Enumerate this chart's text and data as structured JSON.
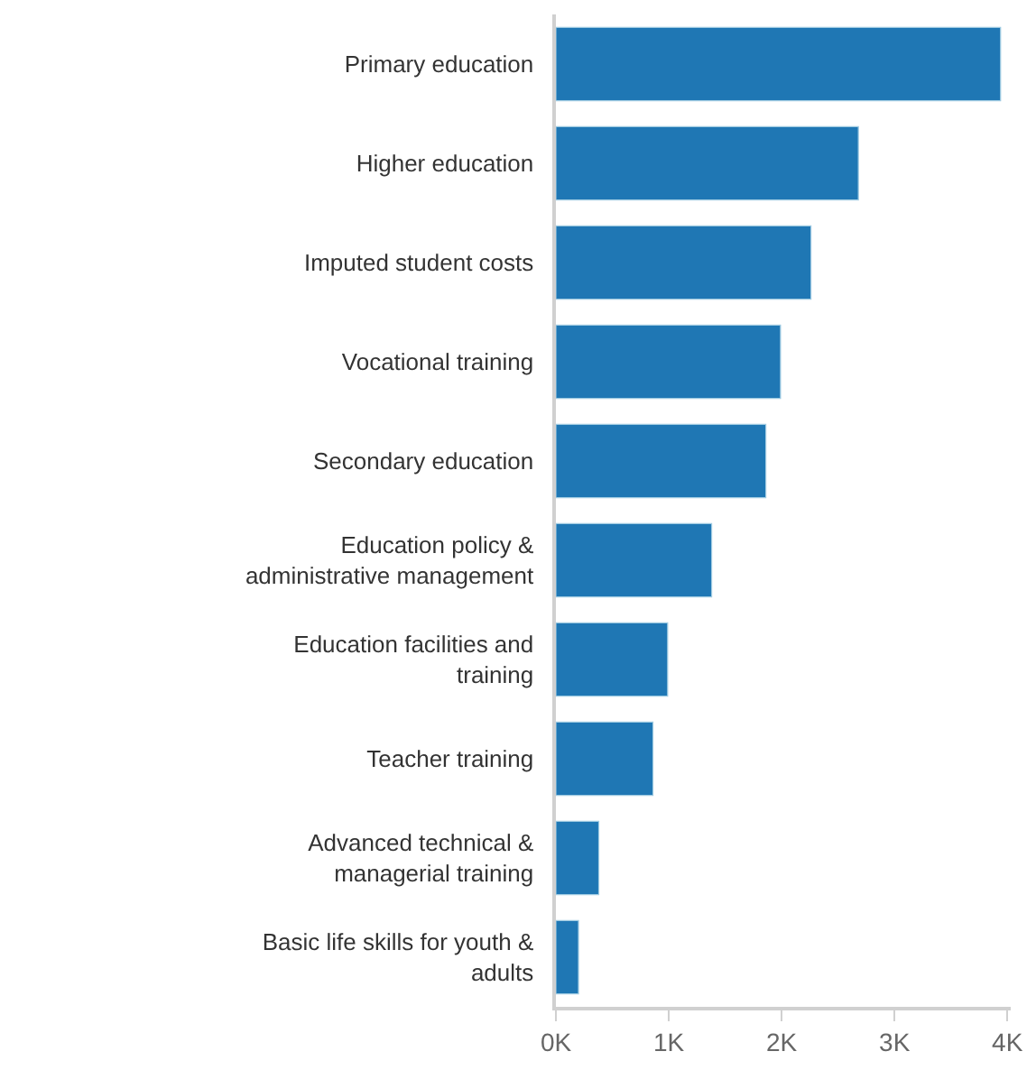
{
  "chart_data": {
    "type": "bar",
    "orientation": "horizontal",
    "categories": [
      "Primary education",
      "Higher education",
      "Imputed student costs",
      "Vocational training",
      "Secondary education",
      "Education policy & administrative management",
      "Education facilities and training",
      "Teacher training",
      "Advanced technical & managerial training",
      "Basic life skills for youth & adults"
    ],
    "values": [
      3940,
      2680,
      2260,
      1990,
      1860,
      1380,
      990,
      860,
      380,
      200
    ],
    "color": "#1f77b4",
    "xlim": [
      0,
      4030
    ],
    "xticks": [
      {
        "value": 0,
        "label": "0K"
      },
      {
        "value": 1000,
        "label": "1K"
      },
      {
        "value": 2000,
        "label": "2K"
      },
      {
        "value": 3000,
        "label": "3K"
      },
      {
        "value": 4000,
        "label": "4K"
      }
    ]
  }
}
